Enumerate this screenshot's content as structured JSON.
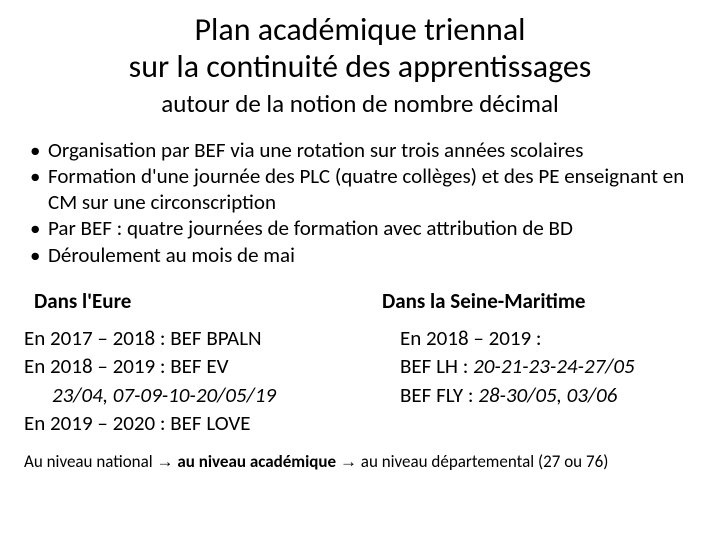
{
  "title_line1": "Plan académique triennal",
  "title_line2": "sur la continuité des apprentissages",
  "subtitle": "autour de la notion de nombre décimal",
  "bullets": [
    "Organisation par BEF via une rotation sur trois années scolaires",
    "Formation d'une journée des PLC (quatre collèges) et des PE enseignant en CM sur une circonscription",
    "Par BEF : quatre journées de formation avec attribution de BD",
    "Déroulement au mois de mai"
  ],
  "left": {
    "header": "Dans l'Eure",
    "r1": "En 2017 – 2018 : BEF BPALN",
    "r2": "En 2018 – 2019 : BEF EV",
    "r3": "23/04, 07-09-10-20/05/19",
    "r4": "En 2019 – 2020 : BEF LOVE"
  },
  "right": {
    "header": "Dans la Seine-Maritime",
    "r1": "En 2018 – 2019 :",
    "r2a": "BEF LH : ",
    "r2b": "20-21-23-24-27/05",
    "r3a": "BEF FLY : ",
    "r3b": "28-30/05, 03/06"
  },
  "footer": {
    "a": "Au niveau national ",
    "arrow1": "→",
    "b": " au niveau académique ",
    "arrow2": "→",
    "c": " au niveau départemental (27 ou 76)"
  }
}
